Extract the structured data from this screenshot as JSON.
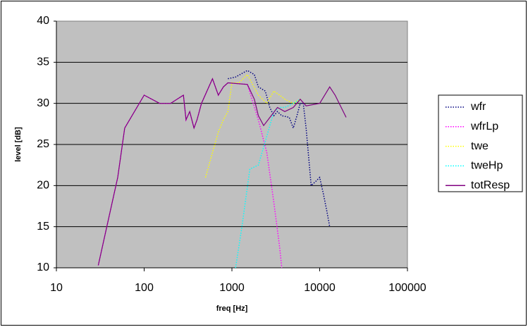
{
  "chart_data": {
    "type": "line",
    "xlabel": "freq [Hz]",
    "ylabel": "level [dB]",
    "xscale": "log",
    "xlim": [
      10,
      100000
    ],
    "xticks": [
      10,
      100,
      1000,
      10000,
      100000
    ],
    "ylim": [
      10,
      40
    ],
    "yticks": [
      10,
      15,
      20,
      25,
      30,
      35,
      40
    ],
    "grid": true,
    "legend": "right",
    "series": [
      {
        "name": "wfr",
        "color": "#000080",
        "style": "dotted",
        "x": [
          900,
          1100,
          1500,
          1800,
          2000,
          2400,
          2700,
          3000,
          3300,
          3700,
          4500,
          5000,
          5500,
          6000,
          6500,
          7000,
          8000,
          9000,
          10000,
          11000,
          12000,
          13000
        ],
        "values": [
          33,
          33.2,
          34,
          33.5,
          32,
          31.5,
          29.5,
          28.5,
          29,
          28.5,
          28.3,
          27,
          28.5,
          30,
          30,
          27,
          20,
          20.5,
          21,
          19,
          17,
          15
        ]
      },
      {
        "name": "wfrLp",
        "color": "#ff00ff",
        "style": "dotted",
        "x": [
          30,
          50,
          60,
          100,
          150,
          200,
          280,
          300,
          330,
          370,
          400,
          450,
          600,
          700,
          800,
          900,
          1500,
          2000,
          2500,
          3000,
          3500,
          3700
        ],
        "values": [
          10.3,
          21,
          27,
          31,
          30,
          30,
          31,
          28,
          29,
          27,
          28,
          30,
          33,
          31,
          32,
          32.5,
          32.3,
          28,
          24,
          18,
          12.5,
          10
        ]
      },
      {
        "name": "twe",
        "color": "#ffff00",
        "style": "dotted",
        "x": [
          500,
          600,
          700,
          800,
          900,
          1000,
          1200,
          1500,
          2000,
          2500,
          3000,
          3500,
          4000,
          5000,
          6000
        ],
        "values": [
          21,
          24,
          26.5,
          28,
          29,
          32.5,
          32.5,
          33.5,
          31,
          30,
          31.5,
          31,
          30.5,
          30,
          30.5
        ]
      },
      {
        "name": "tweHp",
        "color": "#00ffff",
        "style": "dotted",
        "x": [
          1100,
          1300,
          1600,
          2000,
          2500,
          3000,
          3500,
          4000,
          5000,
          6000
        ],
        "values": [
          10,
          15,
          22,
          22.5,
          26,
          29,
          29.5,
          29.5,
          30,
          30.5
        ]
      },
      {
        "name": "totResp",
        "color": "#800080",
        "style": "solid",
        "x": [
          30,
          50,
          60,
          100,
          150,
          200,
          280,
          300,
          330,
          370,
          400,
          450,
          600,
          700,
          800,
          900,
          1500,
          1800,
          2000,
          2300,
          2800,
          3300,
          4000,
          5000,
          6000,
          7000,
          10000,
          13000,
          15000,
          20000
        ],
        "values": [
          10.3,
          21,
          27,
          31,
          30,
          30,
          31,
          28,
          29,
          27,
          28,
          30,
          33,
          31,
          32,
          32.5,
          32.3,
          30.5,
          28.5,
          27.3,
          28.5,
          29.5,
          29,
          29.5,
          30.5,
          29.7,
          30,
          32,
          31,
          28.3
        ]
      }
    ]
  }
}
